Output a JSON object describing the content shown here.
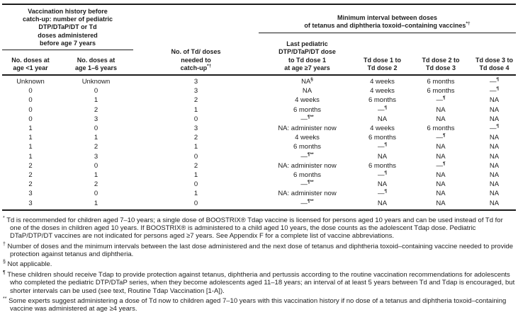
{
  "colors": {
    "background": "#ffffff",
    "text": "#1c1c1c",
    "rule": "#1c1c1c"
  },
  "table": {
    "header": {
      "left_group": "Vaccination history before\ncatch-up: number of pediatric\nDTP/DTaP/DT or Td\ndoses administered\nbefore age 7 years",
      "right_group": "Minimum interval between doses\nof tetanus and diphtheria toxoid–containing vaccines",
      "right_group_sup": "*†",
      "columns": [
        {
          "label": "No. doses at\nage <1 year",
          "sup": ""
        },
        {
          "label": "No. doses at\nage 1–6 years",
          "sup": ""
        },
        {
          "label": "No. of Td/ doses\nneeded to\ncatch-up",
          "sup": "*†"
        },
        {
          "label": "Last pediatric\nDTP/DTaP/DT dose\nto Td dose 1\nat age ≥7 years",
          "sup": ""
        },
        {
          "label": "Td dose 1 to\nTd dose 2",
          "sup": ""
        },
        {
          "label": "Td dose 2 to\nTd dose 3",
          "sup": ""
        },
        {
          "label": "Td dose 3 to\nTd dose 4",
          "sup": ""
        }
      ]
    },
    "rows": [
      [
        "Unknown",
        "Unknown",
        "3",
        {
          "t": "NA",
          "s": "§"
        },
        "4 weeks",
        "6 months",
        {
          "t": "—",
          "s": "¶"
        }
      ],
      [
        "0",
        "0",
        "3",
        "NA",
        "4 weeks",
        "6 months",
        {
          "t": "—",
          "s": "¶"
        }
      ],
      [
        "0",
        "1",
        "2",
        "4 weeks",
        "6 months",
        {
          "t": "—",
          "s": "¶"
        },
        "NA"
      ],
      [
        "0",
        "2",
        "1",
        "6 months",
        {
          "t": "—",
          "s": "¶"
        },
        "NA",
        "NA"
      ],
      [
        "0",
        "3",
        "0",
        {
          "t": "—",
          "s": "¶**"
        },
        "NA",
        "NA",
        "NA"
      ],
      [
        "1",
        "0",
        "3",
        "NA: administer now",
        "4 weeks",
        "6 months",
        {
          "t": "—",
          "s": "¶"
        }
      ],
      [
        "1",
        "1",
        "2",
        "4 weeks",
        "6 months",
        {
          "t": "—",
          "s": "¶"
        },
        "NA"
      ],
      [
        "1",
        "2",
        "1",
        "6 months",
        {
          "t": "—",
          "s": "¶"
        },
        "NA",
        "NA"
      ],
      [
        "1",
        "3",
        "0",
        {
          "t": "—",
          "s": "¶**"
        },
        "NA",
        "NA",
        "NA"
      ],
      [
        "2",
        "0",
        "2",
        "NA: administer now",
        "6 months",
        {
          "t": "—",
          "s": "¶"
        },
        "NA"
      ],
      [
        "2",
        "1",
        "1",
        "6 months",
        {
          "t": "—",
          "s": "¶"
        },
        "NA",
        "NA"
      ],
      [
        "2",
        "2",
        "0",
        {
          "t": "—",
          "s": "¶**"
        },
        "NA",
        "NA",
        "NA"
      ],
      [
        "3",
        "0",
        "1",
        "NA: administer now",
        {
          "t": "—",
          "s": "¶"
        },
        "NA",
        "NA"
      ],
      [
        "3",
        "1",
        "0",
        {
          "t": "—",
          "s": "¶**"
        },
        "NA",
        "NA",
        "NA"
      ]
    ],
    "footnotes": [
      {
        "marker": "*",
        "text": "Td is recommended for children aged 7–10 years; a single dose of BOOSTRIX® Tdap vaccine is licensed for persons aged 10 years and can be used instead of Td for one of the doses in children aged 10 years. If BOOSTRIX® is administered to a child aged 10 years, the dose counts as the adolescent Tdap dose. Pediatric DTaP/DTP/DT vaccines are not indicated for persons aged ≥7 years. See Appendix F for a complete list of vaccine abbreviations."
      },
      {
        "marker": "†",
        "text": "Number of doses and the minimum intervals between the last dose administered and the next dose of tetanus and diphtheria toxoid–containing vaccine needed to provide protection against tetanus and diphtheria."
      },
      {
        "marker": "§",
        "text": "Not applicable."
      },
      {
        "marker": "¶",
        "text": "These children should receive Tdap to provide protection against tetanus, diphtheria and pertussis according to the routine vaccination recommendations for adolescents who completed the pediatric DTP/DTaP series, when they become adolescents aged 11–18 years; an interval of at least 5 years between Td and Tdap is encouraged, but shorter intervals can be used (see text, Routine Tdap Vaccination [1-A])."
      },
      {
        "marker": "**",
        "text": "Some experts suggest administering a dose of Td now to children aged 7–10 years with this vaccination history if no dose of a tetanus and diphtheria toxoid–containing vaccine was administered at age ≥4 years."
      }
    ]
  }
}
